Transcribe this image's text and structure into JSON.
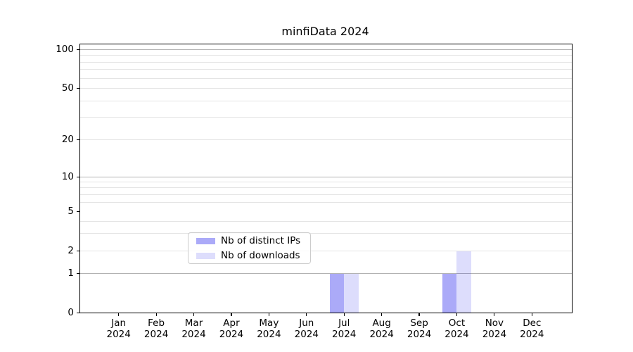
{
  "title": "minfiData 2024",
  "legend": {
    "items": [
      {
        "label": "Nb of distinct IPs",
        "color": "rgba(45,43,238,0.40)"
      },
      {
        "label": "Nb of downloads",
        "color": "rgba(45,43,238,0.16)"
      }
    ]
  },
  "chart_data": {
    "type": "bar",
    "title": "minfiData 2024",
    "xlabel": "",
    "ylabel": "",
    "categories": [
      "Jan 2024",
      "Feb 2024",
      "Mar 2024",
      "Apr 2024",
      "May 2024",
      "Jun 2024",
      "Jul 2024",
      "Aug 2024",
      "Sep 2024",
      "Oct 2024",
      "Nov 2024",
      "Dec 2024"
    ],
    "series": [
      {
        "name": "Nb of distinct IPs",
        "color": "rgba(45,43,238,0.40)",
        "values": [
          0,
          0,
          0,
          0,
          0,
          0,
          1,
          0,
          0,
          1,
          0,
          0
        ]
      },
      {
        "name": "Nb of downloads",
        "color": "rgba(45,43,238,0.16)",
        "values": [
          0,
          0,
          0,
          0,
          0,
          0,
          1,
          0,
          0,
          2,
          0,
          0
        ]
      }
    ],
    "yscale": "symlog",
    "ylim": [
      0,
      120
    ],
    "y_ticks": [
      0,
      1,
      2,
      5,
      10,
      20,
      50,
      100
    ],
    "grid": {
      "major_values": [
        1,
        10,
        100
      ],
      "minor_values": [
        2,
        3,
        4,
        6,
        7,
        8,
        9,
        20,
        30,
        40,
        50,
        60,
        70,
        80,
        90
      ]
    },
    "legend_position": "lower center"
  }
}
